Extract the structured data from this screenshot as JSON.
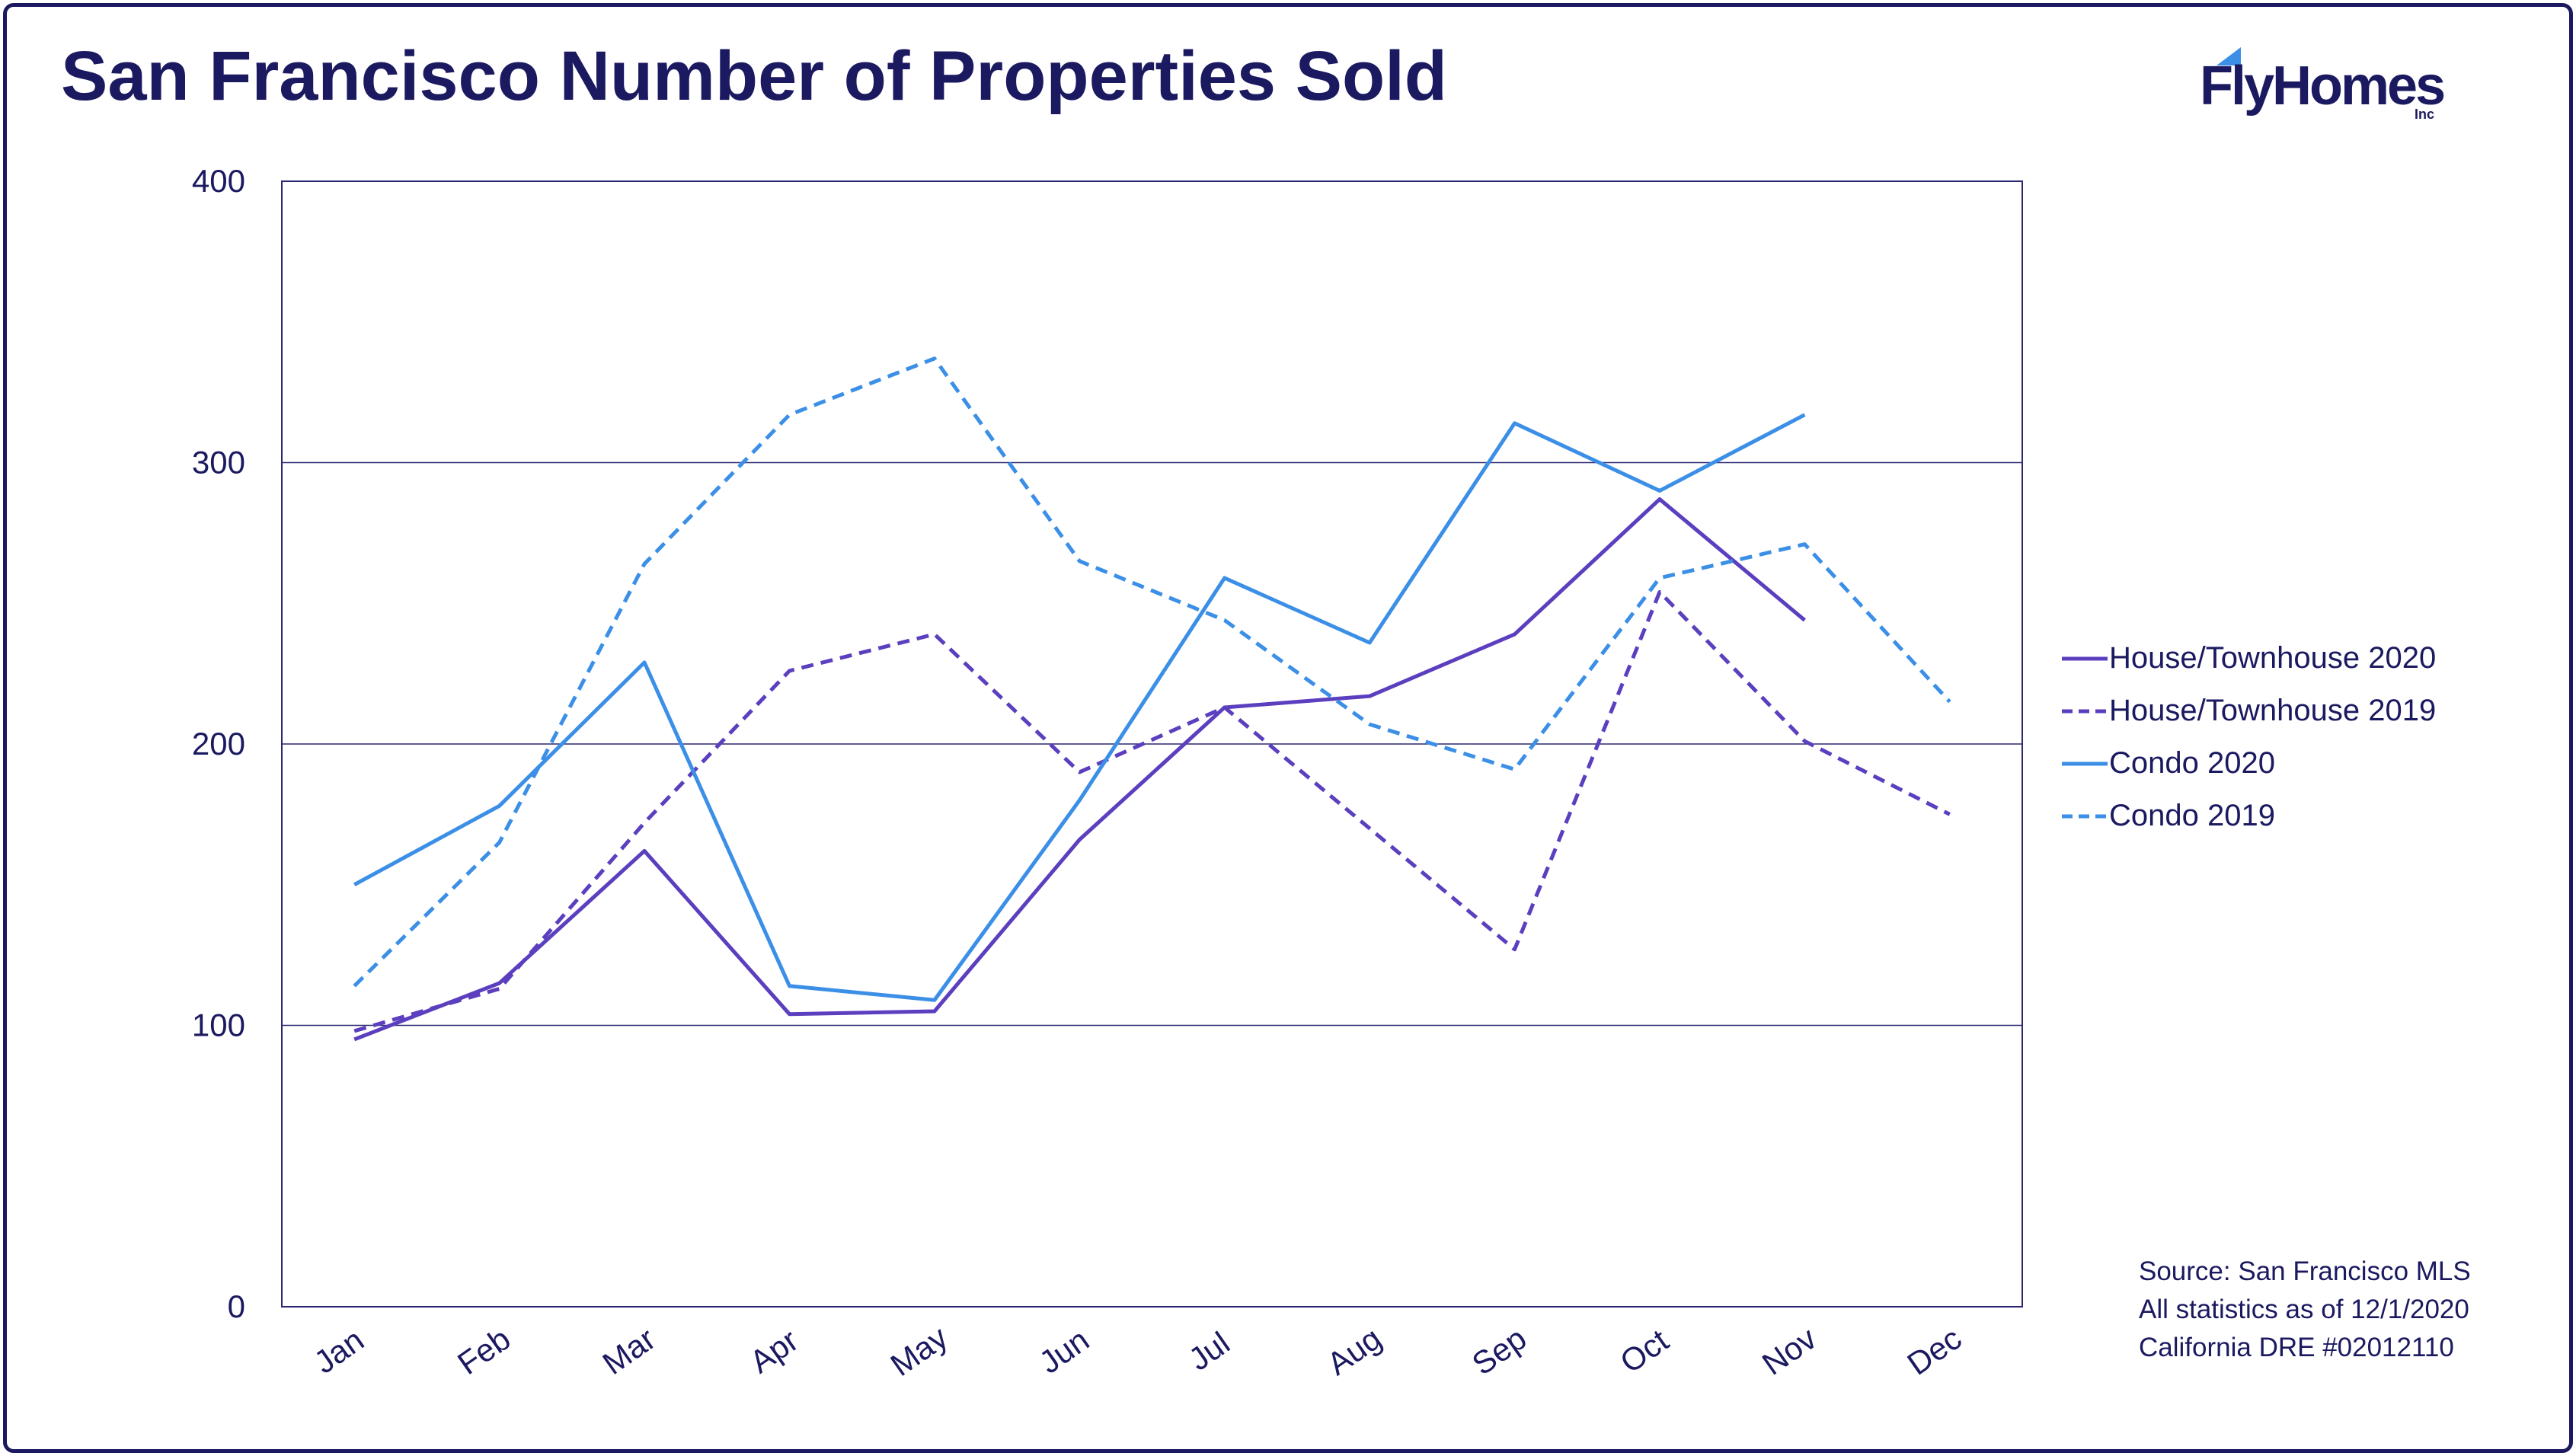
{
  "title": "San Francisco Number of Properties Sold",
  "logo": {
    "name": "FlyHomes",
    "suffix": "Inc",
    "color": "#1b1960",
    "flag_color": "#3c8fe6"
  },
  "source_lines": [
    "Source: San Francisco MLS",
    "All statistics as of 12/1/2020",
    "California DRE #02012110"
  ],
  "chart_data": {
    "type": "line",
    "title": "San Francisco Number of Properties Sold",
    "xlabel": "",
    "ylabel": "",
    "categories": [
      "Jan",
      "Feb",
      "Mar",
      "Apr",
      "May",
      "Jun",
      "Jul",
      "Aug",
      "Sep",
      "Oct",
      "Nov",
      "Dec"
    ],
    "ylim": [
      0,
      400
    ],
    "yticks": [
      0,
      100,
      200,
      300,
      400
    ],
    "grid": true,
    "legend_position": "right",
    "series": [
      {
        "name": "House/Townhouse 2020",
        "color": "#5b3fbf",
        "dash": "solid",
        "values": [
          95,
          115,
          162,
          104,
          105,
          166,
          213,
          217,
          239,
          287,
          244,
          null
        ]
      },
      {
        "name": "House/Townhouse 2019",
        "color": "#5b3fbf",
        "dash": "dashed",
        "values": [
          98,
          113,
          172,
          226,
          239,
          190,
          213,
          170,
          127,
          254,
          201,
          175
        ]
      },
      {
        "name": "Condo 2020",
        "color": "#3c8fe6",
        "dash": "solid",
        "values": [
          150,
          178,
          229,
          114,
          109,
          180,
          259,
          236,
          314,
          290,
          317,
          null
        ]
      },
      {
        "name": "Condo 2019",
        "color": "#3c8fe6",
        "dash": "dashed",
        "values": [
          114,
          165,
          264,
          317,
          337,
          265,
          244,
          207,
          191,
          259,
          271,
          215
        ]
      }
    ]
  },
  "colors": {
    "frame": "#1b1960",
    "text": "#1b1960",
    "grid": "#2a2870"
  }
}
